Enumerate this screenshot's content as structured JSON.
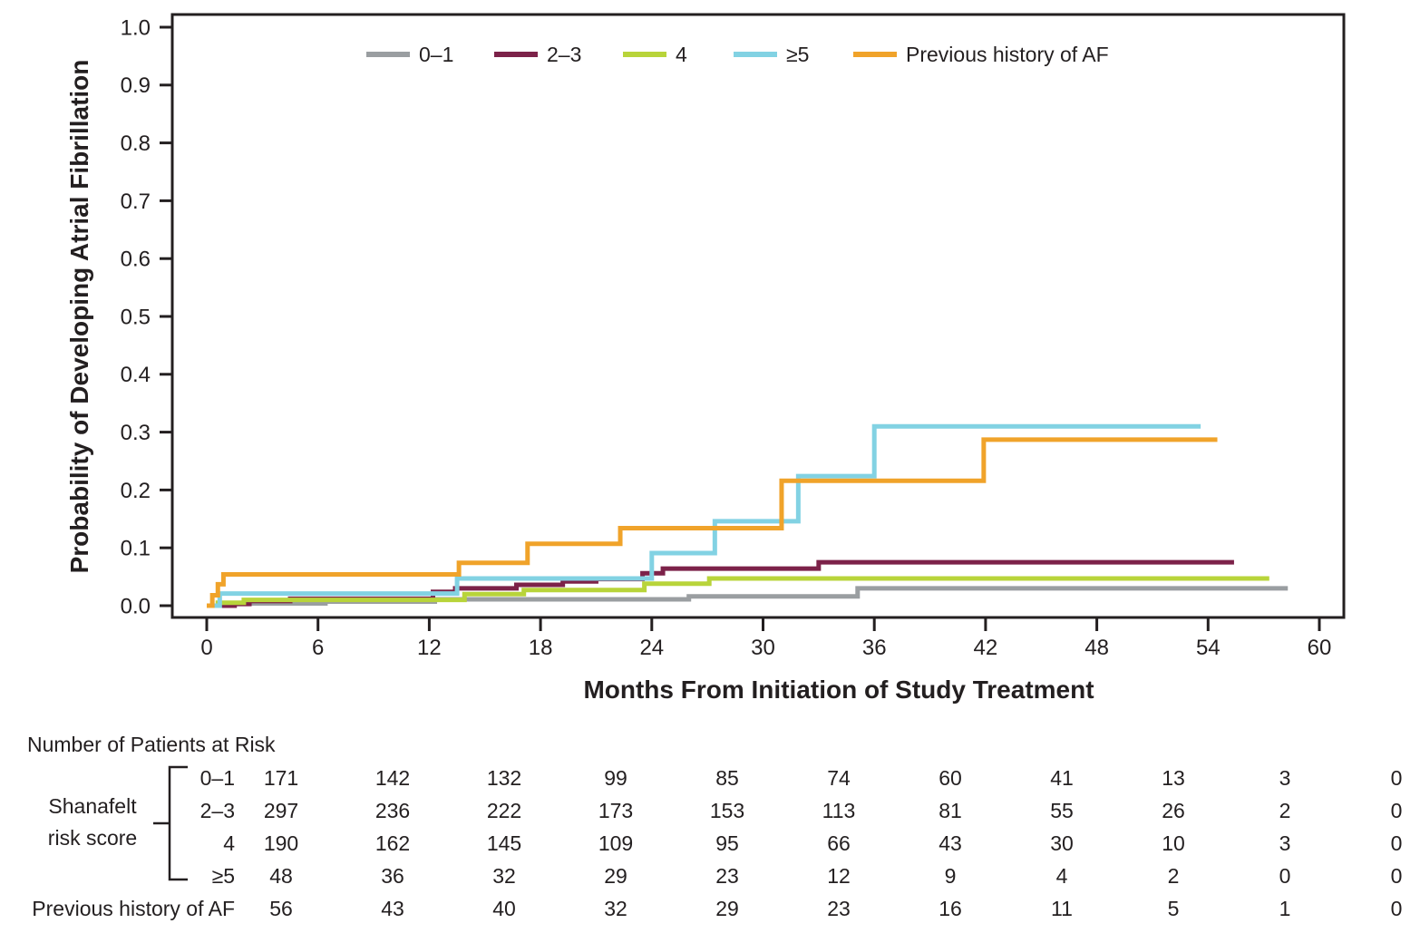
{
  "chart_data": {
    "type": "line",
    "subtype": "kaplan-meier-step",
    "title": "",
    "xlabel": "Months From Initiation of Study Treatment",
    "ylabel": "Probability of Developing Atrial Fibrillation",
    "xlim": [
      0,
      60
    ],
    "ylim": [
      0.0,
      1.0
    ],
    "xtick_labels": [
      "0",
      "6",
      "12",
      "18",
      "24",
      "30",
      "36",
      "42",
      "48",
      "54",
      "60"
    ],
    "ytick_labels": [
      "0.0",
      "0.1",
      "0.2",
      "0.3",
      "0.4",
      "0.5",
      "0.6",
      "0.7",
      "0.8",
      "0.9",
      "1.0"
    ],
    "grid": false,
    "legend_position": "top-inside",
    "frame_color": "#231f20",
    "series": [
      {
        "name": "0–1",
        "color": "#9a9ea1",
        "points": [
          [
            0,
            0
          ],
          [
            1.5,
            0.004
          ],
          [
            6.4,
            0.007
          ],
          [
            12.3,
            0.011
          ],
          [
            26.0,
            0.016
          ],
          [
            35.1,
            0.03
          ],
          [
            58.3,
            0.03
          ]
        ]
      },
      {
        "name": "2–3",
        "color": "#7c2249",
        "points": [
          [
            0,
            0
          ],
          [
            1.5,
            0.003
          ],
          [
            2.3,
            0.008
          ],
          [
            4.5,
            0.012
          ],
          [
            12.2,
            0.024
          ],
          [
            13.4,
            0.03
          ],
          [
            16.7,
            0.036
          ],
          [
            19.2,
            0.042
          ],
          [
            21.0,
            0.046
          ],
          [
            23.5,
            0.056
          ],
          [
            24.6,
            0.064
          ],
          [
            33.0,
            0.075
          ],
          [
            55.4,
            0.075
          ]
        ]
      },
      {
        "name": "4",
        "color": "#b8d43a",
        "points": [
          [
            0,
            0
          ],
          [
            0.6,
            0.005
          ],
          [
            2.0,
            0.01
          ],
          [
            13.9,
            0.02
          ],
          [
            17.1,
            0.027
          ],
          [
            23.6,
            0.038
          ],
          [
            27.1,
            0.047
          ],
          [
            57.3,
            0.047
          ]
        ]
      },
      {
        "name": "≥5",
        "color": "#82d2e3",
        "points": [
          [
            0,
            0
          ],
          [
            0.7,
            0.021
          ],
          [
            13.5,
            0.047
          ],
          [
            24.0,
            0.091
          ],
          [
            27.4,
            0.146
          ],
          [
            31.9,
            0.224
          ],
          [
            36.0,
            0.31
          ],
          [
            53.6,
            0.31
          ]
        ]
      },
      {
        "name": "Previous history of AF",
        "color": "#f0a32a",
        "points": [
          [
            0,
            0
          ],
          [
            0.3,
            0.018
          ],
          [
            0.6,
            0.037
          ],
          [
            0.9,
            0.054
          ],
          [
            13.6,
            0.074
          ],
          [
            17.3,
            0.107
          ],
          [
            22.3,
            0.134
          ],
          [
            31.0,
            0.216
          ],
          [
            41.9,
            0.287
          ],
          [
            54.5,
            0.287
          ]
        ]
      }
    ]
  },
  "risk_table": {
    "title": "Number of Patients at Risk",
    "group_label_line1": "Shanafelt",
    "group_label_line2": "risk score",
    "timepoints": [
      0,
      6,
      12,
      18,
      24,
      30,
      36,
      42,
      48,
      54,
      60
    ],
    "rows": [
      {
        "label": "0–1",
        "values": [
          "171",
          "142",
          "132",
          "99",
          "85",
          "74",
          "60",
          "41",
          "13",
          "3",
          "0"
        ]
      },
      {
        "label": "2–3",
        "values": [
          "297",
          "236",
          "222",
          "173",
          "153",
          "113",
          "81",
          "55",
          "26",
          "2",
          "0"
        ]
      },
      {
        "label": "4",
        "values": [
          "190",
          "162",
          "145",
          "109",
          "95",
          "66",
          "43",
          "30",
          "10",
          "3",
          "0"
        ]
      },
      {
        "label": "≥5",
        "values": [
          "48",
          "36",
          "32",
          "29",
          "23",
          "12",
          "9",
          "4",
          "2",
          "0",
          "0"
        ]
      },
      {
        "label": "Previous history of AF",
        "values": [
          "56",
          "43",
          "40",
          "32",
          "29",
          "23",
          "16",
          "11",
          "5",
          "1",
          "0"
        ]
      }
    ]
  }
}
